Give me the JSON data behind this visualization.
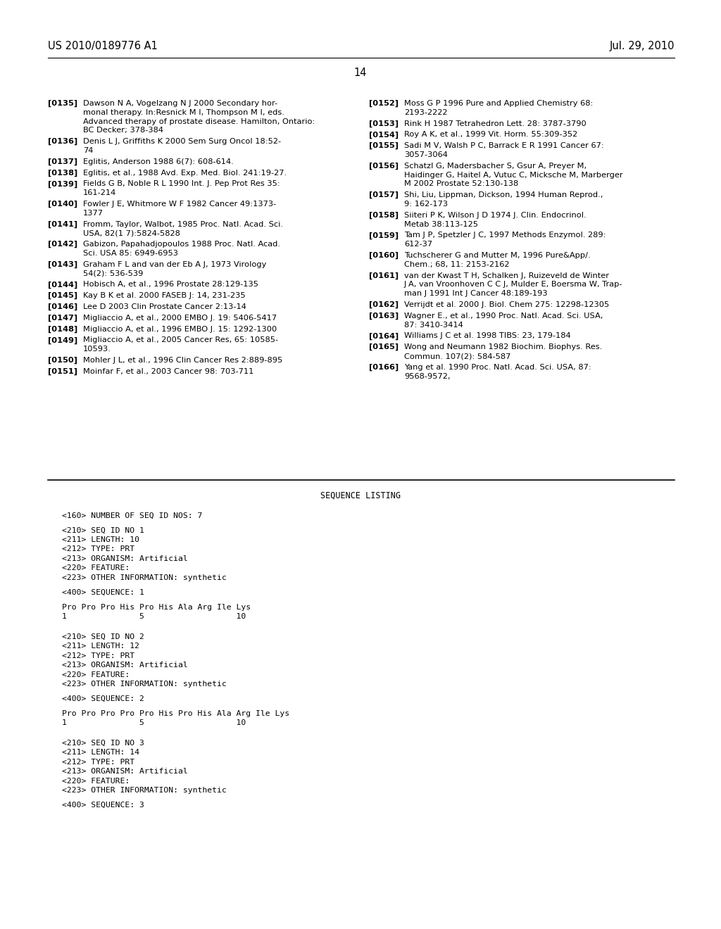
{
  "bg_color": "#ffffff",
  "header_left": "US 2010/0189776 A1",
  "header_right": "Jul. 29, 2010",
  "page_number": "14",
  "left_refs": [
    {
      "num": "[0135]",
      "lines": [
        "Dawson N A, Vogelzang N J 2000 Secondary hor-",
        "monal therapy. In:Resnick M I, Thompson M I, eds.",
        "Advanced therapy of prostate disease. Hamilton, Ontario:",
        "BC Decker; 378-384"
      ]
    },
    {
      "num": "[0136]",
      "lines": [
        "Denis L J, Griffiths K 2000 Sem Surg Oncol 18:52-",
        "74"
      ]
    },
    {
      "num": "[0137]",
      "lines": [
        "Eglitis, Anderson 1988 6(7): 608-614."
      ]
    },
    {
      "num": "[0138]",
      "lines": [
        "Eglitis, et al., 1988 Avd. Exp. Med. Biol. 241:19-27."
      ]
    },
    {
      "num": "[0139]",
      "lines": [
        "Fields G B, Noble R L 1990 Int. J. Pep Prot Res 35:",
        "161-214"
      ]
    },
    {
      "num": "[0140]",
      "lines": [
        "Fowler J E, Whitmore W F 1982 Cancer 49:1373-",
        "1377"
      ]
    },
    {
      "num": "[0141]",
      "lines": [
        "Fromm, Taylor, Walbot, 1985 Proc. Natl. Acad. Sci.",
        "USA, 82(1 7):5824-5828"
      ]
    },
    {
      "num": "[0142]",
      "lines": [
        "Gabizon, Papahadjopoulos 1988 Proc. Natl. Acad.",
        "Sci. USA 85: 6949-6953"
      ]
    },
    {
      "num": "[0143]",
      "lines": [
        "Graham F L and van der Eb A J, 1973 Virology",
        "54(2): 536-539"
      ]
    },
    {
      "num": "[0144]",
      "lines": [
        "Hobisch A, et al., 1996 Prostate 28:129-135"
      ]
    },
    {
      "num": "[0145]",
      "lines": [
        "Kay B K et al. 2000 FASEB J: 14, 231-235"
      ]
    },
    {
      "num": "[0146]",
      "lines": [
        "Lee D 2003 Clin Prostate Cancer 2:13-14"
      ]
    },
    {
      "num": "[0147]",
      "lines": [
        "Migliaccio A, et al., 2000 EMBO J. 19: 5406-5417"
      ]
    },
    {
      "num": "[0148]",
      "lines": [
        "Migliaccio A, et al., 1996 EMBO J. 15: 1292-1300"
      ]
    },
    {
      "num": "[0149]",
      "lines": [
        "Migliaccio A, et al., 2005 Cancer Res, 65: 10585-",
        "10593."
      ]
    },
    {
      "num": "[0150]",
      "lines": [
        "Mohler J L, et al., 1996 Clin Cancer Res 2:889-895"
      ]
    },
    {
      "num": "[0151]",
      "lines": [
        "Moinfar F, et al., 2003 Cancer 98: 703-711"
      ]
    }
  ],
  "right_refs": [
    {
      "num": "[0152]",
      "lines": [
        "Moss G P 1996 Pure and Applied Chemistry 68:",
        "2193-2222"
      ]
    },
    {
      "num": "[0153]",
      "lines": [
        "Rink H 1987 Tetrahedron Lett. 28: 3787-3790"
      ]
    },
    {
      "num": "[0154]",
      "lines": [
        "Roy A K, et al., 1999 Vit. Horm. 55:309-352"
      ]
    },
    {
      "num": "[0155]",
      "lines": [
        "Sadi M V, Walsh P C, Barrack E R 1991 Cancer 67:",
        "3057-3064"
      ]
    },
    {
      "num": "[0156]",
      "lines": [
        "Schatzl G, Madersbacher S, Gsur A, Preyer M,",
        "Haidinger G, Haitel A, Vutuc C, Micksche M, Marberger",
        "M 2002 Prostate 52:130-138"
      ]
    },
    {
      "num": "[0157]",
      "lines": [
        "Shi, Liu, Lippman, Dickson, 1994 Human Reprod.,",
        "9: 162-173"
      ]
    },
    {
      "num": "[0158]",
      "lines": [
        "Siiteri P K, Wilson J D 1974 J. Clin. Endocrinol.",
        "Metab 38:113-125"
      ]
    },
    {
      "num": "[0159]",
      "lines": [
        "Tam J P, Spetzler J C, 1997 Methods Enzymol. 289:",
        "612-37"
      ]
    },
    {
      "num": "[0160]",
      "lines": [
        "Tuchscherer G and Mutter M, 1996 Pure&App/.",
        "Chem.; 68, 11: 2153-2162"
      ]
    },
    {
      "num": "[0161]",
      "lines": [
        "van der Kwast T H, Schalken J, Ruizeveld de Winter",
        "J A, van Vroonhoven C C J, Mulder E, Boersma W, Trap-",
        "man J 1991 Int J Cancer 48:189-193"
      ]
    },
    {
      "num": "[0162]",
      "lines": [
        "Verrijdt et al. 2000 J. Biol. Chem 275: 12298-12305"
      ]
    },
    {
      "num": "[0163]",
      "lines": [
        "Wagner E., et al., 1990 Proc. Natl. Acad. Sci. USA,",
        "87: 3410-3414"
      ]
    },
    {
      "num": "[0164]",
      "lines": [
        "Williams J C et al. 1998 TIBS: 23, 179-184"
      ]
    },
    {
      "num": "[0165]",
      "lines": [
        "Wong and Neumann 1982 Biochim. Biophys. Res.",
        "Commun. 107(2): 584-587"
      ]
    },
    {
      "num": "[0166]",
      "lines": [
        "Yang et al. 1990 Proc. Natl. Acad. Sci. USA, 87:",
        "9568-9572,"
      ]
    }
  ],
  "sequence_listing_title": "SEQUENCE LISTING",
  "sequence_lines": [
    "",
    "<160> NUMBER OF SEQ ID NOS: 7",
    "",
    "<210> SEQ ID NO 1",
    "<211> LENGTH: 10",
    "<212> TYPE: PRT",
    "<213> ORGANISM: Artificial",
    "<220> FEATURE:",
    "<223> OTHER INFORMATION: synthetic",
    "",
    "<400> SEQUENCE: 1",
    "",
    "Pro Pro Pro His Pro His Ala Arg Ile Lys",
    "1               5                   10",
    "",
    "",
    "<210> SEQ ID NO 2",
    "<211> LENGTH: 12",
    "<212> TYPE: PRT",
    "<213> ORGANISM: Artificial",
    "<220> FEATURE:",
    "<223> OTHER INFORMATION: synthetic",
    "",
    "<400> SEQUENCE: 2",
    "",
    "Pro Pro Pro Pro Pro His Pro His Ala Arg Ile Lys",
    "1               5                   10",
    "",
    "",
    "<210> SEQ ID NO 3",
    "<211> LENGTH: 14",
    "<212> TYPE: PRT",
    "<213> ORGANISM: Artificial",
    "<220> FEATURE:",
    "<223> OTHER INFORMATION: synthetic",
    "",
    "<400> SEQUENCE: 3"
  ]
}
